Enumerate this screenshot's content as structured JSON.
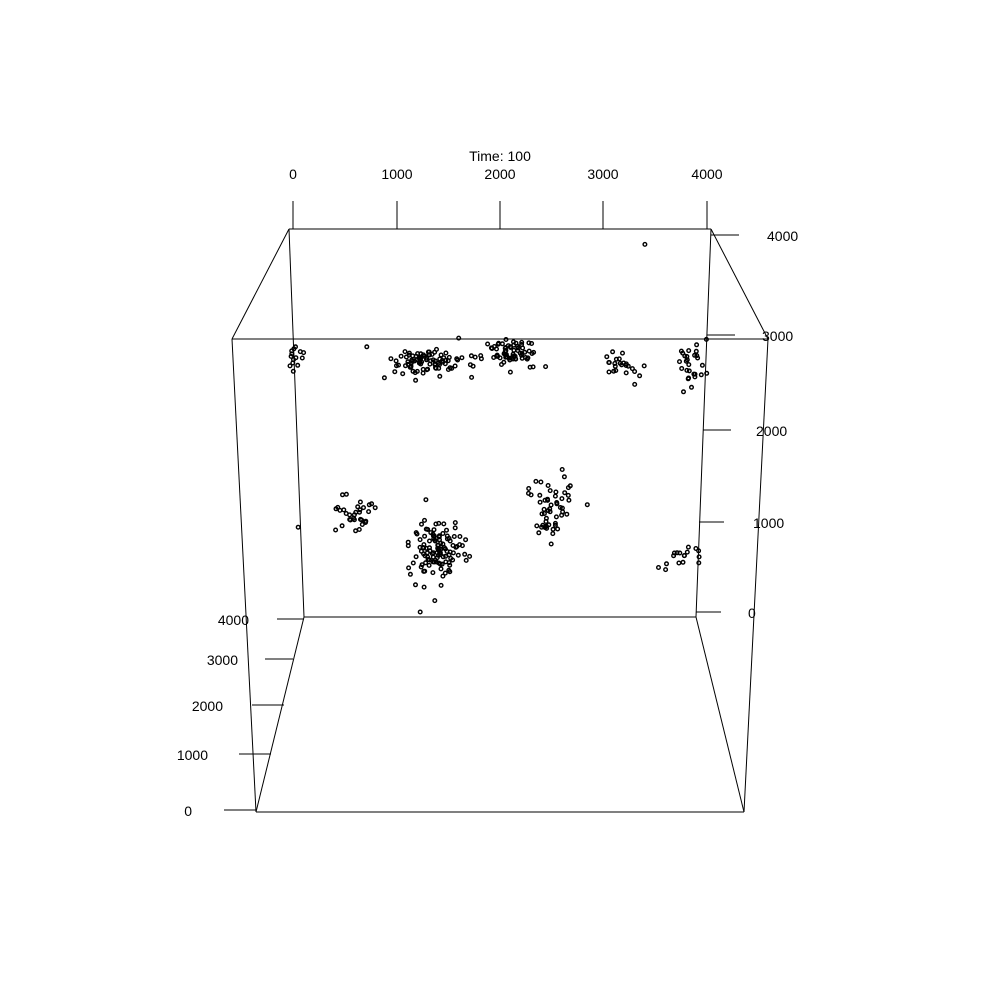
{
  "title": "Time: 100",
  "chart_data": {
    "type": "scatter3d",
    "title": "Time: 100",
    "xlim": [
      0,
      4000
    ],
    "ylim": [
      0,
      4000
    ],
    "zlim": [
      0,
      4000
    ],
    "x_ticks": [
      "0",
      "1000",
      "2000",
      "3000",
      "4000"
    ],
    "y_ticks": [
      "0",
      "1000",
      "2000",
      "3000",
      "4000"
    ],
    "z_ticks": [
      "0",
      "1000",
      "2000",
      "3000",
      "4000"
    ],
    "grid": false,
    "legend": "none",
    "clusters": [
      {
        "x": 20,
        "z": 2700,
        "spread_x": 60,
        "spread_z": 140,
        "count": 14
      },
      {
        "x": 1300,
        "z": 2650,
        "spread_x": 300,
        "spread_z": 130,
        "count": 90
      },
      {
        "x": 2100,
        "z": 2750,
        "spread_x": 220,
        "spread_z": 120,
        "count": 70
      },
      {
        "x": 3150,
        "z": 2600,
        "spread_x": 180,
        "spread_z": 150,
        "count": 24
      },
      {
        "x": 3850,
        "z": 2650,
        "spread_x": 110,
        "spread_z": 200,
        "count": 28
      },
      {
        "x": 600,
        "z": 1050,
        "spread_x": 160,
        "spread_z": 140,
        "count": 32
      },
      {
        "x": 1400,
        "z": 650,
        "spread_x": 230,
        "spread_z": 260,
        "count": 120
      },
      {
        "x": 2500,
        "z": 1100,
        "spread_x": 220,
        "spread_z": 280,
        "count": 55
      },
      {
        "x": 3750,
        "z": 600,
        "spread_x": 140,
        "spread_z": 110,
        "count": 16
      }
    ],
    "points": [
      {
        "x": 3400,
        "z": 3900
      },
      {
        "x": 50,
        "z": 900
      },
      {
        "x": 3600,
        "z": 450
      }
    ]
  }
}
